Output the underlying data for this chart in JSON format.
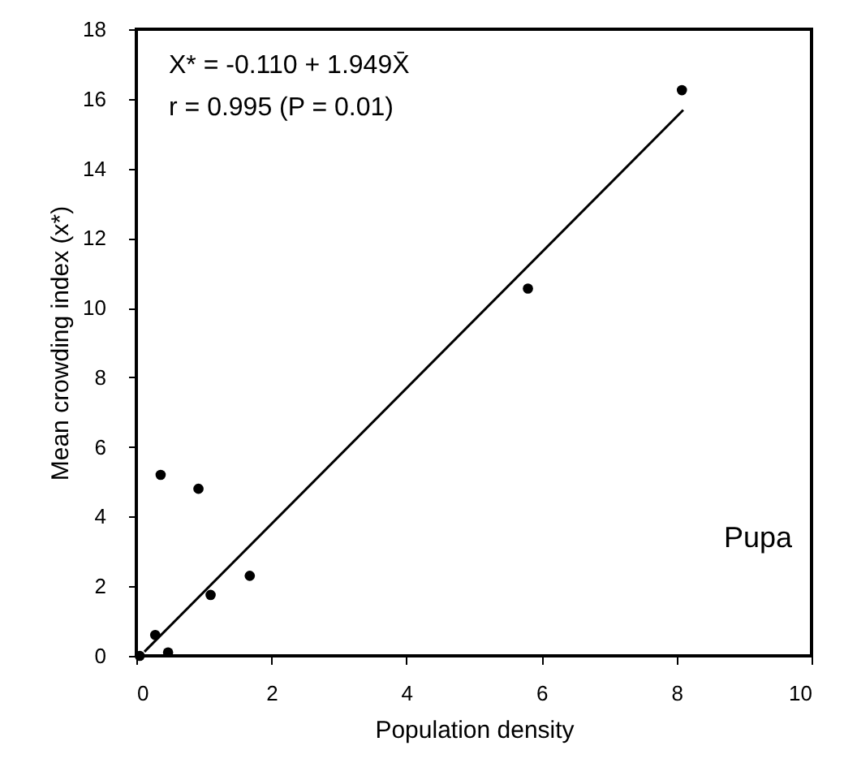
{
  "chart_data": {
    "type": "scatter",
    "xlabel": "Population density",
    "ylabel": "Mean crowding index (x*)",
    "annotations": [
      "X* = -0.110 + 1.949X̄",
      "r  = 0.995 (P = 0.01)",
      "Pupa"
    ],
    "series": [
      {
        "color": "#000000",
        "x": [
          0.05,
          0.28,
          0.47,
          0.36,
          0.92,
          1.1,
          1.68,
          5.8,
          8.08
        ],
        "values": [
          0,
          0.6,
          0.1,
          5.2,
          4.8,
          1.75,
          2.3,
          10.55,
          16.25
        ]
      },
      {
        "type": "line",
        "color": "#000000",
        "x": [
          0.12,
          8.1
        ],
        "values": [
          0.12,
          15.68
        ]
      }
    ],
    "xlim": [
      0,
      10
    ],
    "ylim": [
      0,
      18
    ],
    "xticks": [
      0,
      2,
      4,
      6,
      8,
      10
    ],
    "yticks": [
      0,
      2,
      4,
      6,
      8,
      10,
      12,
      14,
      16,
      18
    ],
    "grid": false
  }
}
